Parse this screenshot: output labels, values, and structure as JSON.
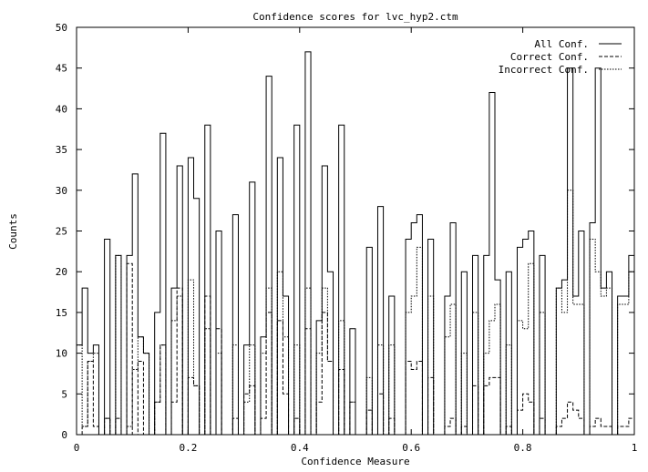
{
  "chart_data": {
    "type": "histogram",
    "title": "Confidence scores for lvc_hyp2.ctm",
    "xlabel": "Confidence Measure",
    "ylabel": "Counts",
    "xlim": [
      0,
      1
    ],
    "ylim": [
      0,
      50
    ],
    "x_ticks": [
      "0",
      "0.2",
      "0.4",
      "0.6",
      "0.8",
      "1"
    ],
    "y_ticks": [
      "0",
      "5",
      "10",
      "15",
      "20",
      "25",
      "30",
      "35",
      "40",
      "45",
      "50"
    ],
    "bin_width": 0.01,
    "legend_position": "top-right",
    "series": [
      {
        "name": "All Conf.",
        "line": "solid",
        "values": [
          11,
          18,
          10,
          11,
          0,
          24,
          0,
          22,
          0,
          22,
          32,
          12,
          10,
          0,
          15,
          37,
          0,
          18,
          33,
          0,
          34,
          29,
          0,
          38,
          0,
          25,
          0,
          0,
          27,
          0,
          11,
          31,
          0,
          12,
          44,
          0,
          34,
          17,
          0,
          38,
          0,
          47,
          0,
          14,
          33,
          20,
          0,
          38,
          0,
          13,
          0,
          0,
          23,
          0,
          28,
          0,
          17,
          0,
          0,
          24,
          26,
          27,
          0,
          24,
          0,
          0,
          17,
          26,
          0,
          20,
          0,
          22,
          0,
          22,
          42,
          19,
          0,
          20,
          0,
          23,
          24,
          25,
          0,
          22,
          0,
          0,
          18,
          19,
          45,
          17,
          25,
          0,
          26,
          45,
          18,
          20,
          0,
          17,
          17,
          22
        ]
      },
      {
        "name": "Correct Conf.",
        "line": "dashed",
        "values": [
          0,
          1,
          9,
          1,
          0,
          2,
          0,
          2,
          0,
          21,
          0,
          9,
          0,
          0,
          4,
          11,
          0,
          4,
          18,
          0,
          7,
          6,
          0,
          17,
          0,
          13,
          0,
          0,
          2,
          0,
          5,
          6,
          0,
          2,
          15,
          0,
          14,
          5,
          0,
          2,
          0,
          13,
          0,
          4,
          15,
          9,
          0,
          8,
          0,
          4,
          0,
          0,
          3,
          0,
          5,
          0,
          2,
          0,
          0,
          9,
          8,
          9,
          0,
          7,
          0,
          0,
          1,
          2,
          0,
          1,
          0,
          6,
          0,
          6,
          7,
          7,
          0,
          1,
          0,
          3,
          5,
          4,
          0,
          2,
          0,
          0,
          1,
          2,
          4,
          3,
          2,
          0,
          1,
          2,
          1,
          1,
          0,
          1,
          1,
          2
        ]
      },
      {
        "name": "Incorrect Conf.",
        "line": "dotted",
        "values": [
          11,
          1,
          9,
          10,
          0,
          2,
          0,
          22,
          0,
          1,
          8,
          12,
          10,
          0,
          4,
          11,
          0,
          14,
          17,
          0,
          19,
          6,
          0,
          13,
          0,
          10,
          0,
          0,
          11,
          0,
          4,
          11,
          0,
          10,
          18,
          0,
          20,
          12,
          0,
          11,
          0,
          18,
          0,
          10,
          18,
          9,
          0,
          14,
          0,
          4,
          0,
          0,
          7,
          0,
          11,
          0,
          11,
          0,
          0,
          15,
          17,
          23,
          0,
          17,
          0,
          0,
          12,
          16,
          0,
          10,
          0,
          15,
          0,
          10,
          14,
          16,
          0,
          11,
          0,
          14,
          13,
          21,
          0,
          15,
          0,
          0,
          18,
          15,
          30,
          16,
          16,
          0,
          24,
          20,
          17,
          18,
          0,
          16,
          16,
          20
        ]
      }
    ]
  }
}
